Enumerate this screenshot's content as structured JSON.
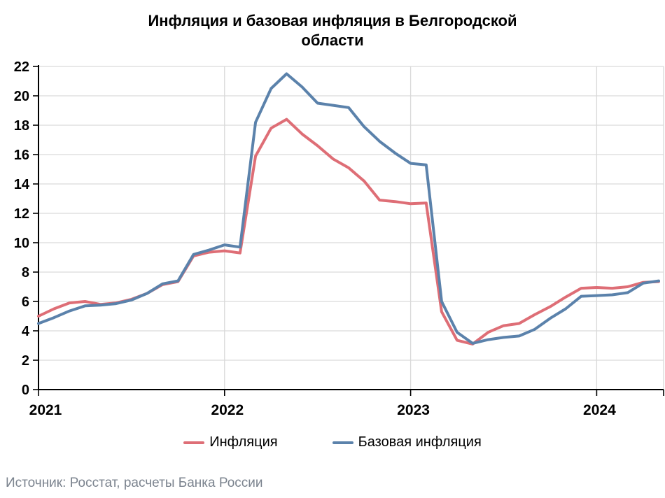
{
  "title": "Инфляция и базовая инфляция в Белгородской области",
  "source": "Источник: Росстат, расчеты Банка России",
  "legend": [
    {
      "label": "Инфляция",
      "color": "#de6e76"
    },
    {
      "label": "Базовая инфляция",
      "color": "#5b82ab"
    }
  ],
  "colors": {
    "grid": "#d9d9d9",
    "axis": "#000000",
    "tick_label": "#000000",
    "source_text": "#7b838e"
  },
  "chart_data": {
    "type": "line",
    "title": "Инфляция и базовая инфляция в Белгородской области",
    "xlabel": "",
    "ylabel": "",
    "x_unit": "month",
    "x_range": "Jan 2021 – May 2024",
    "x_tick_labels": [
      "2021",
      "2022",
      "2023",
      "2024"
    ],
    "x_tick_month_index": [
      0,
      12,
      24,
      36
    ],
    "ylim": [
      0,
      22
    ],
    "y_tick_step": 2,
    "grid": true,
    "legend_position": "bottom",
    "series": [
      {
        "name": "Инфляция",
        "color": "#de6e76",
        "values": [
          5.0,
          5.5,
          5.9,
          6.0,
          5.8,
          5.9,
          6.15,
          6.55,
          7.15,
          7.35,
          9.1,
          9.35,
          9.45,
          9.3,
          15.9,
          17.8,
          18.4,
          17.4,
          16.6,
          15.7,
          15.1,
          14.2,
          12.9,
          12.8,
          12.65,
          12.7,
          5.3,
          3.35,
          3.1,
          3.9,
          4.35,
          4.5,
          5.1,
          5.65,
          6.3,
          6.9,
          6.95,
          6.9,
          7.0,
          7.3,
          7.35
        ]
      },
      {
        "name": "Базовая инфляция",
        "color": "#5b82ab",
        "values": [
          4.5,
          4.9,
          5.35,
          5.7,
          5.75,
          5.85,
          6.1,
          6.55,
          7.2,
          7.4,
          9.2,
          9.5,
          9.85,
          9.7,
          18.2,
          20.5,
          21.5,
          20.6,
          19.5,
          19.35,
          19.2,
          17.9,
          16.9,
          16.1,
          15.4,
          15.3,
          6.0,
          3.9,
          3.15,
          3.4,
          3.55,
          3.65,
          4.1,
          4.85,
          5.5,
          6.35,
          6.4,
          6.45,
          6.6,
          7.25,
          7.4
        ]
      }
    ]
  }
}
